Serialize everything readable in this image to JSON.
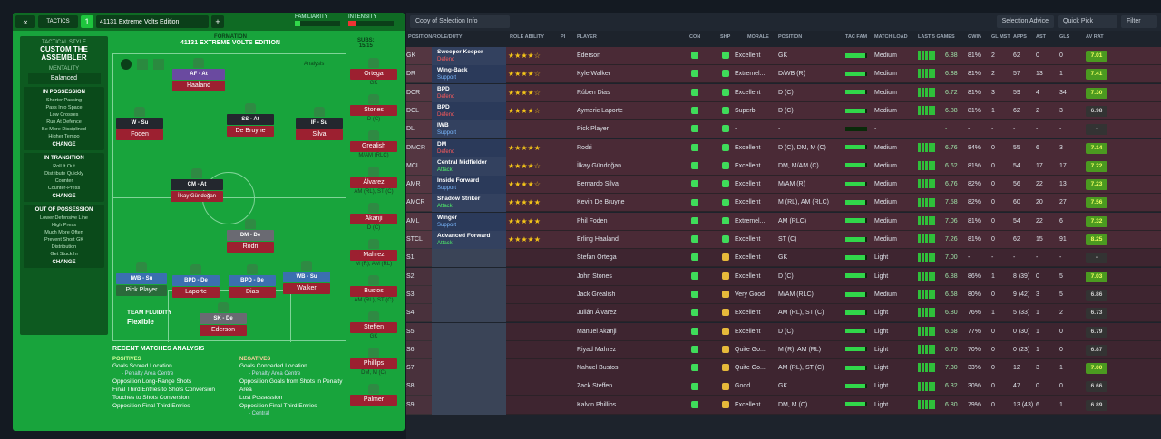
{
  "tactics": {
    "label": "TACTICS",
    "slot": "1",
    "name": "41131 Extreme Volts Edition",
    "add": "+",
    "familiarity": "FAMILIARITY",
    "intensity": "INTENSITY"
  },
  "sidebar": {
    "style_label": "TACTICAL STYLE",
    "style": "CUSTOM THE ASSEMBLER",
    "mentality_label": "MENTALITY",
    "mentality": "Balanced",
    "in_possession": {
      "title": "IN POSSESSION",
      "items": [
        "Shorter Passing",
        "Pass Into Space",
        "Low Crosses",
        "Run At Defence",
        "Be More Disciplined",
        "Higher Tempo"
      ],
      "change": "CHANGE"
    },
    "in_transition": {
      "title": "IN TRANSITION",
      "items": [
        "Roll It Out",
        "Distribute Quickly",
        "Counter",
        "Counter-Press"
      ],
      "change": "CHANGE"
    },
    "out_of_possession": {
      "title": "OUT OF POSSESSION",
      "items": [
        "Lower Defensive Line",
        "High Press",
        "Much More Often",
        "Prevent Short GK",
        "Distribution",
        "Get Stuck In"
      ],
      "change": "CHANGE"
    }
  },
  "formation": {
    "label": "FORMATION",
    "name": "41131 EXTREME VOLTS EDITION",
    "subs_label": "SUBS:",
    "subs": "15/15",
    "analysis_label": "Analysis",
    "fluidity_label": "TEAM FLUIDITY",
    "fluidity": "Flexible"
  },
  "pitch_players": [
    {
      "role": "AF - At",
      "name": "Haaland"
    },
    {
      "role": "W - Su",
      "name": "Foden"
    },
    {
      "role": "SS - At",
      "name": "De Bruyne"
    },
    {
      "role": "IF - Su",
      "name": "Silva"
    },
    {
      "role": "CM - At",
      "name": "İlkay Gündoğan"
    },
    {
      "role": "DM - De",
      "name": "Rodri"
    },
    {
      "role": "IWB - Su",
      "name": "Pick Player"
    },
    {
      "role": "BPD - De",
      "name": "Laporte"
    },
    {
      "role": "BPD - De",
      "name": "Dias"
    },
    {
      "role": "WB - Su",
      "name": "Walker"
    },
    {
      "role": "SK - De",
      "name": "Ederson"
    }
  ],
  "subs_list": [
    {
      "name": "Ortega",
      "pos": "GK"
    },
    {
      "name": "Stones",
      "pos": "D (C)"
    },
    {
      "name": "Grealish",
      "pos": "M/AM (RLC)"
    },
    {
      "name": "Álvarez",
      "pos": "AM (RL), ST (C)"
    },
    {
      "name": "Akanji",
      "pos": "D (C)"
    },
    {
      "name": "Mahrez",
      "pos": "M (R), AM (RL)"
    },
    {
      "name": "Bustos",
      "pos": "AM (RL), ST (C)"
    },
    {
      "name": "Steffen",
      "pos": "GK"
    },
    {
      "name": "Phillips",
      "pos": "DM, M (C)"
    },
    {
      "name": "Palmer",
      "pos": ""
    }
  ],
  "analysis": {
    "title": "RECENT MATCHES ANALYSIS",
    "pos_label": "POSITIVES",
    "neg_label": "NEGATIVES",
    "positives": [
      {
        "t": "Goals Scored Location",
        "s": "- Penalty Area Centre"
      },
      {
        "t": "Opposition Long-Range Shots",
        "s": ""
      },
      {
        "t": "Final Third Entries to Shots Conversion",
        "s": ""
      },
      {
        "t": "Touches to Shots Conversion",
        "s": ""
      },
      {
        "t": "Opposition Final Third Entries",
        "s": ""
      }
    ],
    "negatives": [
      {
        "t": "Goals Conceded Location",
        "s": "- Penalty Area Centre"
      },
      {
        "t": "Opposition Goals from Shots in Penalty Area",
        "s": ""
      },
      {
        "t": "Lost Possession",
        "s": ""
      },
      {
        "t": "Opposition Final Third Entries",
        "s": "- Central"
      }
    ]
  },
  "right_header": {
    "view": "Copy of Selection Info",
    "advice": "Selection Advice",
    "quick_pick": "Quick Pick",
    "filter": "Filter"
  },
  "columns": [
    "POSITION/ROLE/DUTY",
    "ROLE ABILITY",
    "PI",
    "PLAYER",
    "CON",
    "SHP",
    "MORALE",
    "POSITION",
    "TAC FAM",
    "MATCH LOAD",
    "LAST 5 GAMES",
    "GWIN",
    "GL MST",
    "APPS",
    "AST",
    "GLS",
    "AV RAT"
  ],
  "rows": [
    {
      "pos": "GK",
      "role": "Sweeper Keeper",
      "duty": "Defend",
      "stars": "★★★★☆",
      "player": "Ederson",
      "morale": "Excellent",
      "position": "GK",
      "load": "Medium",
      "l5": "6.88",
      "gwin": "81%",
      "glmst": "2",
      "apps": "62",
      "ast": "0",
      "gls": "0",
      "av": "7.01"
    },
    {
      "pos": "DR",
      "role": "Wing-Back",
      "duty": "Support",
      "stars": "★★★★☆",
      "player": "Kyle Walker",
      "morale": "Extremel...",
      "position": "D/WB (R)",
      "load": "Medium",
      "l5": "6.88",
      "gwin": "81%",
      "glmst": "2",
      "apps": "57",
      "ast": "13",
      "gls": "1",
      "av": "7.41"
    },
    {
      "pos": "DCR",
      "role": "BPD",
      "duty": "Defend",
      "stars": "★★★★☆",
      "player": "Rúben Dias",
      "morale": "Excellent",
      "position": "D (C)",
      "load": "Medium",
      "l5": "6.72",
      "gwin": "81%",
      "glmst": "3",
      "apps": "59",
      "ast": "4",
      "gls": "34",
      "av": "7.30"
    },
    {
      "pos": "DCL",
      "role": "BPD",
      "duty": "Defend",
      "stars": "★★★★☆",
      "player": "Aymeric Laporte",
      "morale": "Superb",
      "position": "D (C)",
      "load": "Medium",
      "l5": "6.88",
      "gwin": "81%",
      "glmst": "1",
      "apps": "62",
      "ast": "2",
      "gls": "3",
      "av": "6.98"
    },
    {
      "pos": "DL",
      "role": "IWB",
      "duty": "Support",
      "stars": "",
      "player": "Pick Player",
      "morale": "-",
      "position": "-",
      "load": "-",
      "l5": "-",
      "gwin": "-",
      "glmst": "-",
      "apps": "-",
      "ast": "-",
      "gls": "-",
      "av": "-"
    },
    {
      "pos": "DMCR",
      "role": "DM",
      "duty": "Defend",
      "stars": "★★★★★",
      "player": "Rodri",
      "morale": "Excellent",
      "position": "D (C), DM, M (C)",
      "load": "Medium",
      "l5": "6.76",
      "gwin": "84%",
      "glmst": "0",
      "apps": "55",
      "ast": "6",
      "gls": "3",
      "av": "7.14"
    },
    {
      "pos": "MCL",
      "role": "Central Midfielder",
      "duty": "Attack",
      "stars": "★★★★☆",
      "player": "İlkay Gündoğan",
      "morale": "Excellent",
      "position": "DM, M/AM (C)",
      "load": "Medium",
      "l5": "6.62",
      "gwin": "81%",
      "glmst": "0",
      "apps": "54",
      "ast": "17",
      "gls": "17",
      "av": "7.22"
    },
    {
      "pos": "AMR",
      "role": "Inside Forward",
      "duty": "Support",
      "stars": "★★★★☆",
      "player": "Bernardo Silva",
      "morale": "Excellent",
      "position": "M/AM (R)",
      "load": "Medium",
      "l5": "6.76",
      "gwin": "82%",
      "glmst": "0",
      "apps": "56",
      "ast": "22",
      "gls": "13",
      "av": "7.23"
    },
    {
      "pos": "AMCR",
      "role": "Shadow Striker",
      "duty": "Attack",
      "stars": "★★★★★",
      "player": "Kevin De Bruyne",
      "morale": "Excellent",
      "position": "M (RL), AM (RLC)",
      "load": "Medium",
      "l5": "7.58",
      "gwin": "82%",
      "glmst": "0",
      "apps": "60",
      "ast": "20",
      "gls": "27",
      "av": "7.56"
    },
    {
      "pos": "AML",
      "role": "Winger",
      "duty": "Support",
      "stars": "★★★★★",
      "player": "Phil Foden",
      "morale": "Extremel...",
      "position": "AM (RLC)",
      "load": "Medium",
      "l5": "7.06",
      "gwin": "81%",
      "glmst": "0",
      "apps": "54",
      "ast": "22",
      "gls": "6",
      "av": "7.32"
    },
    {
      "pos": "STCL",
      "role": "Advanced Forward",
      "duty": "Attack",
      "stars": "★★★★★",
      "player": "Erling Haaland",
      "morale": "Excellent",
      "position": "ST (C)",
      "load": "Medium",
      "l5": "7.26",
      "gwin": "81%",
      "glmst": "0",
      "apps": "62",
      "ast": "15",
      "gls": "91",
      "av": "8.25"
    },
    {
      "pos": "S1",
      "role": "",
      "duty": "",
      "stars": "",
      "player": "Stefan Ortega",
      "morale": "Excellent",
      "position": "GK",
      "load": "Light",
      "l5": "7.00",
      "gwin": "-",
      "glmst": "-",
      "apps": "-",
      "ast": "-",
      "gls": "-",
      "av": "-"
    },
    {
      "pos": "S2",
      "role": "",
      "duty": "",
      "stars": "",
      "player": "John Stones",
      "morale": "Excellent",
      "position": "D (C)",
      "load": "Light",
      "l5": "6.88",
      "gwin": "86%",
      "glmst": "1",
      "apps": "8 (39)",
      "ast": "0",
      "gls": "5",
      "av": "7.03"
    },
    {
      "pos": "S3",
      "role": "",
      "duty": "",
      "stars": "",
      "player": "Jack Grealish",
      "morale": "Very Good",
      "position": "M/AM (RLC)",
      "load": "Medium",
      "l5": "6.68",
      "gwin": "80%",
      "glmst": "0",
      "apps": "9 (42)",
      "ast": "3",
      "gls": "5",
      "av": "6.86"
    },
    {
      "pos": "S4",
      "role": "",
      "duty": "",
      "stars": "",
      "player": "Julián Álvarez",
      "morale": "Excellent",
      "position": "AM (RL), ST (C)",
      "load": "Light",
      "l5": "6.80",
      "gwin": "76%",
      "glmst": "1",
      "apps": "5 (33)",
      "ast": "1",
      "gls": "2",
      "av": "6.73"
    },
    {
      "pos": "S5",
      "role": "",
      "duty": "",
      "stars": "",
      "player": "Manuel Akanji",
      "morale": "Excellent",
      "position": "D (C)",
      "load": "Light",
      "l5": "6.68",
      "gwin": "77%",
      "glmst": "0",
      "apps": "0 (30)",
      "ast": "1",
      "gls": "0",
      "av": "6.79"
    },
    {
      "pos": "S6",
      "role": "",
      "duty": "",
      "stars": "",
      "player": "Riyad Mahrez",
      "morale": "Quite Go...",
      "position": "M (R), AM (RL)",
      "load": "Light",
      "l5": "6.70",
      "gwin": "70%",
      "glmst": "0",
      "apps": "0 (23)",
      "ast": "1",
      "gls": "0",
      "av": "6.87"
    },
    {
      "pos": "S7",
      "role": "",
      "duty": "",
      "stars": "",
      "player": "Nahuel Bustos",
      "morale": "Quite Go...",
      "position": "AM (RL), ST (C)",
      "load": "Light",
      "l5": "7.30",
      "gwin": "33%",
      "glmst": "0",
      "apps": "12",
      "ast": "3",
      "gls": "1",
      "av": "7.00"
    },
    {
      "pos": "S8",
      "role": "",
      "duty": "",
      "stars": "",
      "player": "Zack Steffen",
      "morale": "Good",
      "position": "GK",
      "load": "Light",
      "l5": "6.32",
      "gwin": "30%",
      "glmst": "0",
      "apps": "47",
      "ast": "0",
      "gls": "0",
      "av": "6.66"
    },
    {
      "pos": "S9",
      "role": "",
      "duty": "",
      "stars": "",
      "player": "Kalvin Phillips",
      "morale": "Excellent",
      "position": "DM, M (C)",
      "load": "Light",
      "l5": "6.80",
      "gwin": "79%",
      "glmst": "0",
      "apps": "13 (43)",
      "ast": "6",
      "gls": "1",
      "av": "6.89"
    }
  ]
}
